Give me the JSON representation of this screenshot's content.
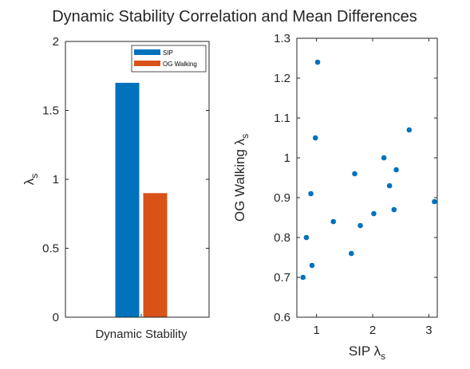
{
  "figure": {
    "title": "Dynamic Stability Correlation and Mean Differences"
  },
  "chart_data": [
    {
      "type": "bar",
      "categories": [
        "Dynamic Stability"
      ],
      "series": [
        {
          "name": "SIP",
          "values": [
            1.7
          ],
          "color": "#0072BD"
        },
        {
          "name": "OG Walking",
          "values": [
            0.9
          ],
          "color": "#D95319"
        }
      ],
      "ylabel": "λ",
      "ylabel_sub": "s",
      "ylim": [
        0,
        2
      ],
      "yticks": [
        0,
        0.5,
        1,
        1.5,
        2
      ],
      "ytick_labels": [
        "0",
        "0.5",
        "1",
        "1.5",
        "2"
      ],
      "legend": "top-right",
      "grid": false
    },
    {
      "type": "scatter",
      "color": "#0072BD",
      "xlabel": "SIP λ",
      "xlabel_sub": "s",
      "ylabel": "OG Walking λ",
      "ylabel_sub": "s",
      "xlim": [
        0.65,
        3.15
      ],
      "ylim": [
        0.6,
        1.3
      ],
      "xticks": [
        1,
        2,
        3
      ],
      "xtick_labels": [
        "1",
        "2",
        "3"
      ],
      "yticks": [
        0.6,
        0.7,
        0.8,
        0.9,
        1.0,
        1.1,
        1.2,
        1.3
      ],
      "ytick_labels": [
        "0.6",
        "0.7",
        "0.8",
        "0.9",
        "1",
        "1.1",
        "1.2",
        "1.3"
      ],
      "grid": false,
      "points": [
        {
          "x": 1.02,
          "y": 1.24
        },
        {
          "x": 0.98,
          "y": 1.05
        },
        {
          "x": 0.9,
          "y": 0.91
        },
        {
          "x": 0.82,
          "y": 0.8
        },
        {
          "x": 0.92,
          "y": 0.73
        },
        {
          "x": 0.76,
          "y": 0.7
        },
        {
          "x": 1.3,
          "y": 0.84
        },
        {
          "x": 1.62,
          "y": 0.76
        },
        {
          "x": 1.68,
          "y": 0.96
        },
        {
          "x": 1.78,
          "y": 0.83
        },
        {
          "x": 2.02,
          "y": 0.86
        },
        {
          "x": 2.2,
          "y": 1.0
        },
        {
          "x": 2.3,
          "y": 0.93
        },
        {
          "x": 2.38,
          "y": 0.87
        },
        {
          "x": 2.42,
          "y": 0.97
        },
        {
          "x": 2.65,
          "y": 1.07
        },
        {
          "x": 3.1,
          "y": 0.89
        }
      ]
    }
  ]
}
